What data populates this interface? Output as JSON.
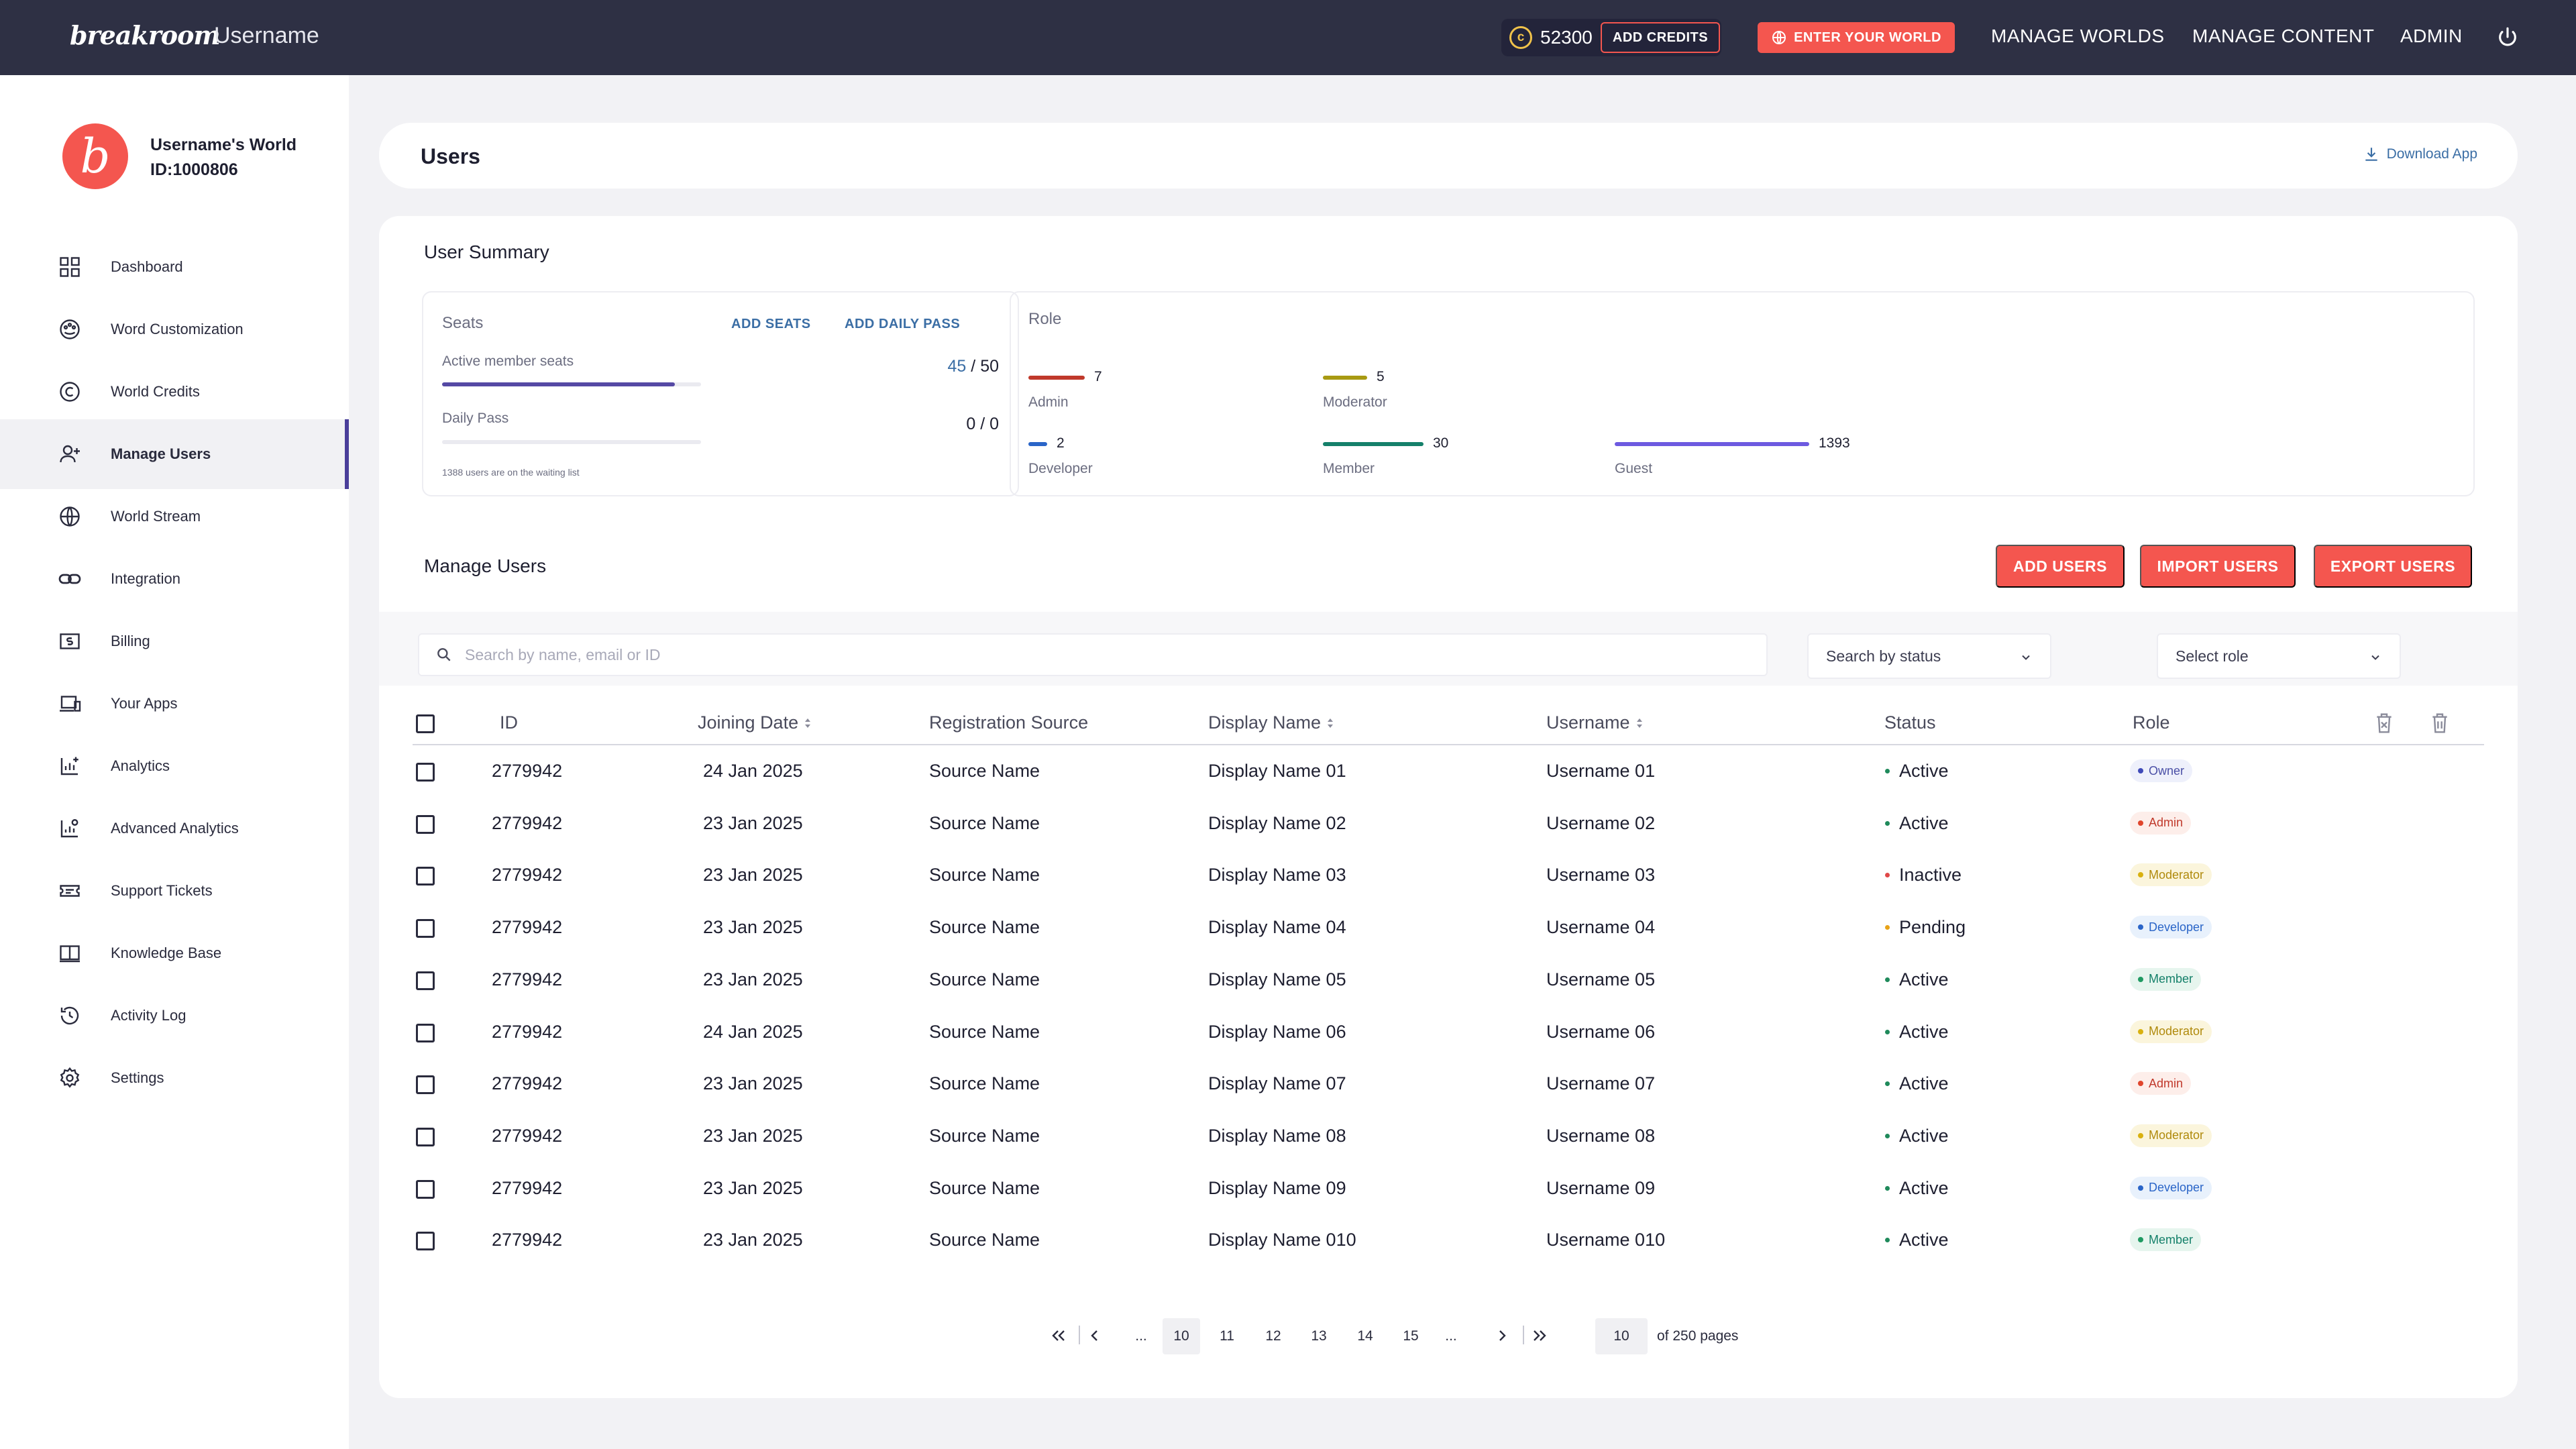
{
  "topbar": {
    "logo": "breakroom",
    "username": "Username",
    "credits": "52300",
    "add_credits": "ADD CREDITS",
    "enter_world": "ENTER YOUR WORLD",
    "nav": [
      "MANAGE WORLDS",
      "MANAGE CONTENT",
      "ADMIN"
    ]
  },
  "sidebar": {
    "world_name": "Username's World",
    "world_id": "ID:1000806",
    "items": [
      {
        "label": "Dashboard",
        "icon": "dashboard-icon"
      },
      {
        "label": "Word Customization",
        "icon": "palette-icon"
      },
      {
        "label": "World Credits",
        "icon": "credits-icon"
      },
      {
        "label": "Manage Users",
        "icon": "user-add-icon",
        "active": true
      },
      {
        "label": "World Stream",
        "icon": "globe-icon"
      },
      {
        "label": "Integration",
        "icon": "link-icon"
      },
      {
        "label": "Billing",
        "icon": "billing-icon"
      },
      {
        "label": "Your Apps",
        "icon": "devices-icon"
      },
      {
        "label": "Analytics",
        "icon": "analytics-icon"
      },
      {
        "label": "Advanced Analytics",
        "icon": "advanced-analytics-icon"
      },
      {
        "label": "Support Tickets",
        "icon": "ticket-icon"
      },
      {
        "label": "Knowledge Base",
        "icon": "book-icon"
      },
      {
        "label": "Activity Log",
        "icon": "history-icon"
      },
      {
        "label": "Settings",
        "icon": "gear-icon"
      }
    ]
  },
  "header": {
    "title": "Users",
    "download": "Download App"
  },
  "summary": {
    "title": "User Summary",
    "seats_label": "Seats",
    "add_seats": "ADD SEATS",
    "add_daily_pass": "ADD DAILY PASS",
    "active_label": "Active member seats",
    "active_used": "45",
    "active_total": "/ 50",
    "active_fraction": 0.9,
    "daily_label": "Daily Pass",
    "daily_used": "0",
    "daily_total": "/ 0",
    "daily_fraction": 0,
    "waiting_note": "1388 users are on the waiting list",
    "role_label": "Role",
    "roles": [
      {
        "name": "Admin",
        "count": "7",
        "color": "#c0392b"
      },
      {
        "name": "Moderator",
        "count": "5",
        "color": "#a89a12"
      },
      {
        "name": "Developer",
        "count": "2",
        "color": "#2a65c8"
      },
      {
        "name": "Member",
        "count": "30",
        "color": "#15806a"
      },
      {
        "name": "Guest",
        "count": "1393",
        "color": "#6d5ae0"
      }
    ]
  },
  "manage": {
    "title": "Manage Users",
    "add_users": "ADD USERS",
    "import_users": "IMPORT USERS",
    "export_users": "EXPORT USERS",
    "search_placeholder": "Search by name, email or ID",
    "status_select": "Search by status",
    "role_select": "Select role"
  },
  "table": {
    "headers": {
      "id": "ID",
      "joining": "Joining Date",
      "source": "Registration Source",
      "display": "Display Name",
      "username": "Username",
      "status": "Status",
      "role": "Role"
    },
    "rows": [
      {
        "id": "2779942",
        "date": "24 Jan 2025",
        "source": "Source Name",
        "display": "Display Name 01",
        "username": "Username 01",
        "status": "Active",
        "role": "Owner"
      },
      {
        "id": "2779942",
        "date": "23 Jan 2025",
        "source": "Source Name",
        "display": "Display Name 02",
        "username": "Username 02",
        "status": "Active",
        "role": "Admin"
      },
      {
        "id": "2779942",
        "date": "23 Jan 2025",
        "source": "Source Name",
        "display": "Display Name 03",
        "username": "Username 03",
        "status": "Inactive",
        "role": "Moderator"
      },
      {
        "id": "2779942",
        "date": "23 Jan 2025",
        "source": "Source Name",
        "display": "Display Name 04",
        "username": "Username 04",
        "status": "Pending",
        "role": "Developer"
      },
      {
        "id": "2779942",
        "date": "23 Jan 2025",
        "source": "Source Name",
        "display": "Display Name 05",
        "username": "Username 05",
        "status": "Active",
        "role": "Member"
      },
      {
        "id": "2779942",
        "date": "24 Jan 2025",
        "source": "Source Name",
        "display": "Display Name 06",
        "username": "Username 06",
        "status": "Active",
        "role": "Moderator"
      },
      {
        "id": "2779942",
        "date": "23 Jan 2025",
        "source": "Source Name",
        "display": "Display Name 07",
        "username": "Username 07",
        "status": "Active",
        "role": "Admin"
      },
      {
        "id": "2779942",
        "date": "23 Jan 2025",
        "source": "Source Name",
        "display": "Display Name 08",
        "username": "Username 08",
        "status": "Active",
        "role": "Moderator"
      },
      {
        "id": "2779942",
        "date": "23 Jan 2025",
        "source": "Source Name",
        "display": "Display Name 09",
        "username": "Username 09",
        "status": "Active",
        "role": "Developer"
      },
      {
        "id": "2779942",
        "date": "23 Jan 2025",
        "source": "Source Name",
        "display": "Display Name 010",
        "username": "Username 010",
        "status": "Active",
        "role": "Member"
      }
    ]
  },
  "status_colors": {
    "Active": "#1f8a5b",
    "Inactive": "#e04848",
    "Pending": "#e8a317"
  },
  "role_badges": {
    "Owner": {
      "bg": "#eef0fb",
      "fg": "#4a4fa6",
      "dot": "#3f4ab8"
    },
    "Admin": {
      "bg": "#fdeeea",
      "fg": "#c0392b",
      "dot": "#e0452c"
    },
    "Moderator": {
      "bg": "#fbf5dc",
      "fg": "#b08a0c",
      "dot": "#d9b10f"
    },
    "Developer": {
      "bg": "#e8f1fc",
      "fg": "#2a65c8",
      "dot": "#2a65c8"
    },
    "Member": {
      "bg": "#e6f5ee",
      "fg": "#15806a",
      "dot": "#1f9a62"
    }
  },
  "pagination": {
    "ellipsis": "...",
    "pages": [
      "10",
      "11",
      "12",
      "13",
      "14",
      "15"
    ],
    "current": "10",
    "page_input": "10",
    "of_pages": "of 250 pages"
  },
  "colors": {
    "accent": "#f4564f",
    "topbar": "#2e3044",
    "brand_purple": "#4a3e9a"
  }
}
